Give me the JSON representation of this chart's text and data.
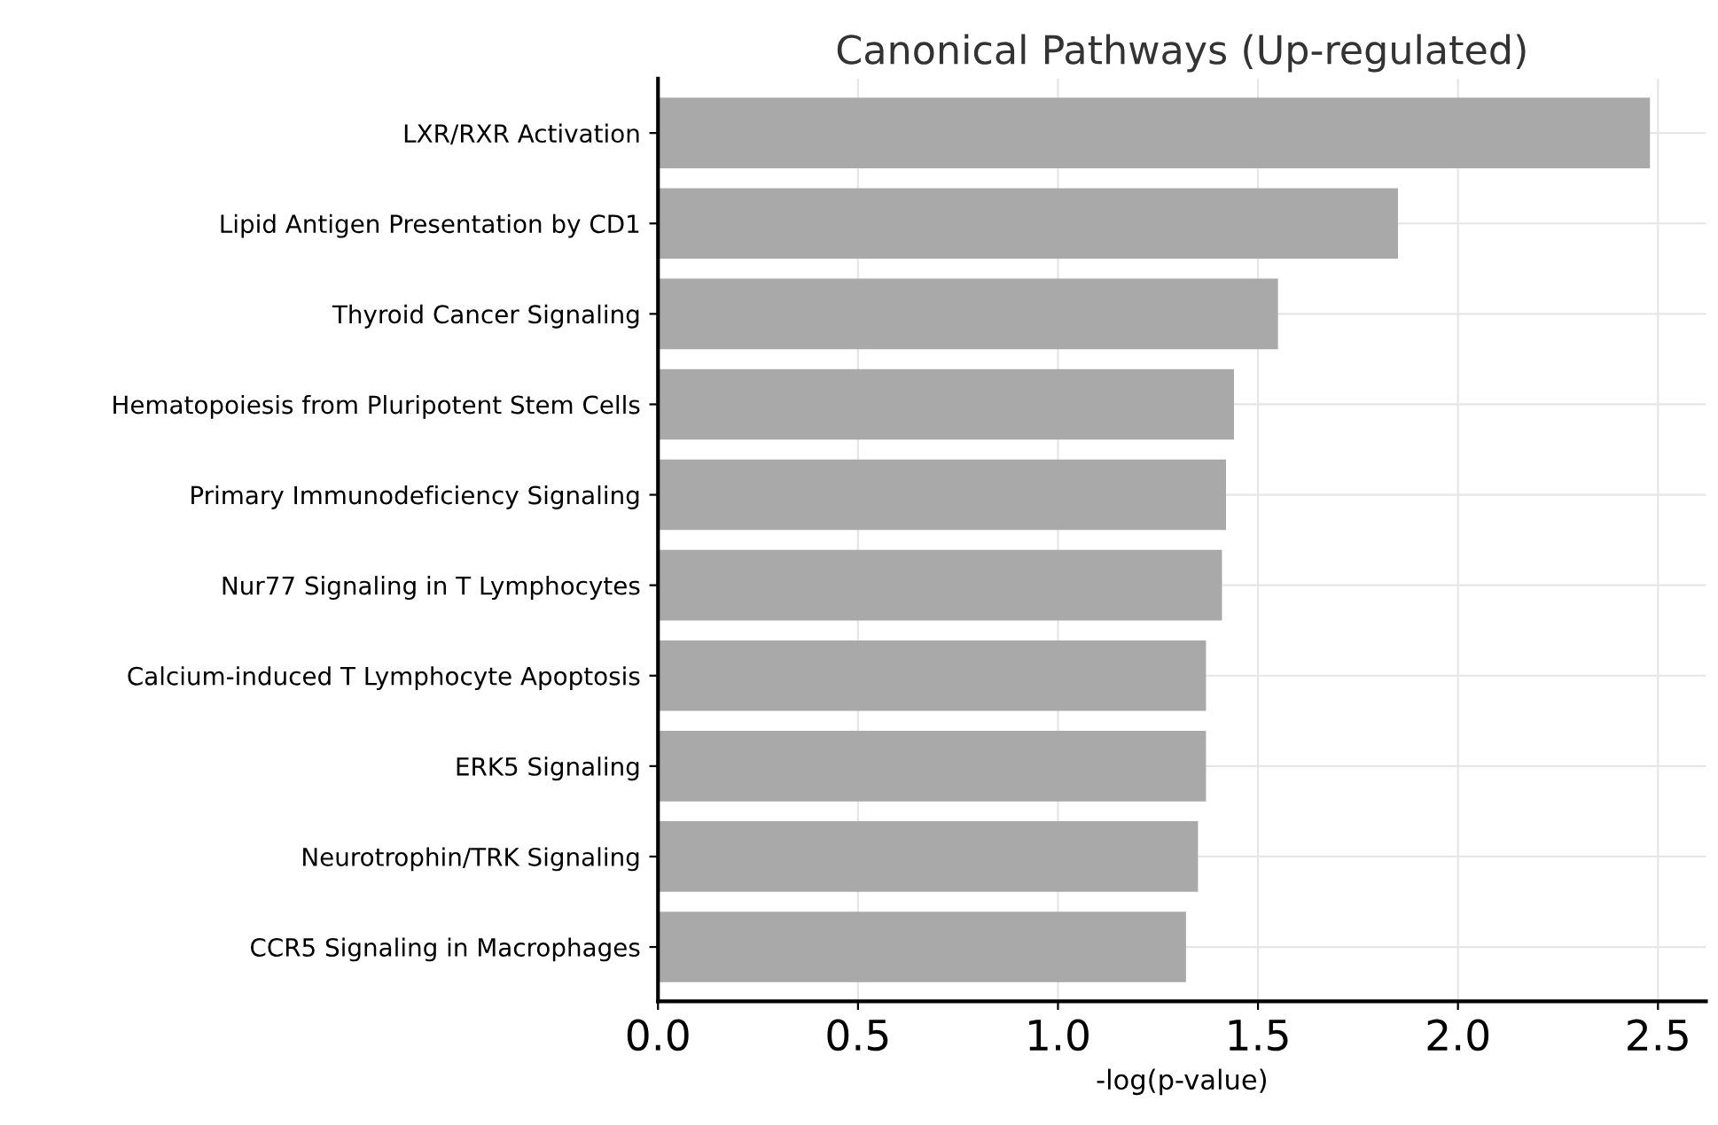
{
  "chart_data": {
    "type": "bar",
    "orientation": "horizontal",
    "title": "Canonical Pathways (Up-regulated)",
    "xlabel": "-log(p-value)",
    "categories": [
      "LXR/RXR Activation",
      "Lipid Antigen Presentation by CD1",
      "Thyroid Cancer Signaling",
      "Hematopoiesis from Pluripotent Stem Cells",
      "Primary Immunodeficiency Signaling",
      "Nur77 Signaling in T Lymphocytes",
      "Calcium-induced T Lymphocyte Apoptosis",
      "ERK5 Signaling",
      "Neurotrophin/TRK Signaling",
      "CCR5 Signaling in Macrophages"
    ],
    "values": [
      2.48,
      1.85,
      1.55,
      1.44,
      1.42,
      1.41,
      1.37,
      1.37,
      1.35,
      1.32
    ],
    "color": "#a9a9a9",
    "xlim": [
      0,
      2.62
    ],
    "xticks": [
      {
        "value": 0,
        "label": "0.0"
      },
      0.5,
      {
        "value": 1,
        "label": "1.0"
      },
      1.5,
      {
        "value": 2,
        "label": "2.0"
      },
      2.5
    ],
    "grid": true
  }
}
